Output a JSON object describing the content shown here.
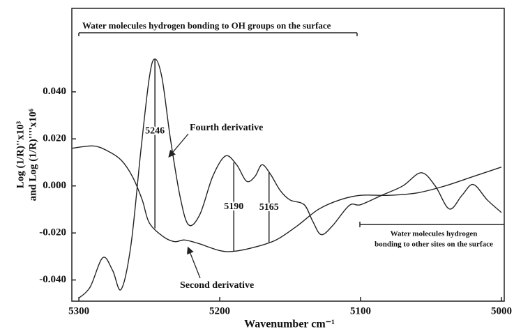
{
  "chart_data": {
    "type": "line",
    "x_label": "Wavenumber cm⁻¹",
    "y_label": [
      "Log (1/R)''x10³",
      "and Log (1/R)''''x10⁶"
    ],
    "xlim": [
      5305,
      4998
    ],
    "xticks": [
      5300,
      5200,
      5100,
      5000
    ],
    "ylim": [
      -0.049,
      0.0755
    ],
    "yticks": [
      {
        "value": 0.04,
        "label": "0.040"
      },
      {
        "value": 0.02,
        "label": "0.020"
      },
      {
        "value": 0,
        "label": "0.000"
      },
      {
        "value": -0.02,
        "label": "-0.020"
      },
      {
        "value": -0.04,
        "label": "-0.040"
      }
    ],
    "series": [
      {
        "name": "Fourth derivative",
        "color": "#222",
        "x": [
          5300,
          5292,
          5283,
          5276,
          5270,
          5263,
          5256,
          5250,
          5246,
          5241,
          5235,
          5228,
          5222,
          5214,
          5205,
          5196,
          5188,
          5181,
          5175,
          5170,
          5164,
          5157,
          5150,
          5140,
          5134,
          5128,
          5120,
          5108,
          5100,
          5085,
          5070,
          5057,
          5047,
          5037,
          5028,
          5020,
          5010,
          5000
        ],
        "values": [
          -0.0477,
          -0.043,
          -0.0305,
          -0.036,
          -0.044,
          -0.025,
          0.015,
          0.046,
          0.054,
          0.046,
          0.02,
          -0.005,
          -0.0166,
          -0.012,
          0.004,
          0.0127,
          0.009,
          0.002,
          0.004,
          0.009,
          0.005,
          -0.002,
          -0.006,
          -0.008,
          -0.015,
          -0.0207,
          -0.017,
          -0.0083,
          -0.008,
          -0.004,
          0.0,
          0.0056,
          0.0,
          -0.0098,
          -0.004,
          0.0006,
          -0.006,
          -0.0113
        ]
      },
      {
        "name": "Second derivative",
        "color": "#222",
        "x": [
          5305,
          5290,
          5280,
          5270,
          5262,
          5255,
          5250,
          5240,
          5232,
          5225,
          5215,
          5200,
          5190,
          5175,
          5160,
          5145,
          5130,
          5115,
          5100,
          5080,
          5060,
          5040,
          5020,
          5000
        ],
        "values": [
          0.016,
          0.017,
          0.015,
          0.011,
          0.004,
          -0.006,
          -0.0157,
          -0.0216,
          -0.0237,
          -0.023,
          -0.0245,
          -0.0275,
          -0.0278,
          -0.026,
          -0.023,
          -0.017,
          -0.01,
          -0.006,
          -0.004,
          -0.004,
          -0.003,
          0.0,
          0.004,
          0.008
        ]
      }
    ],
    "peak_markers": [
      5246,
      5190,
      5165
    ],
    "annotations": {
      "top_region": "Water molecules hydrogen bonding to OH groups on the surface",
      "bottom_region": [
        "Water molecules hydrogen",
        "bonding to other sites on the surface"
      ]
    }
  }
}
